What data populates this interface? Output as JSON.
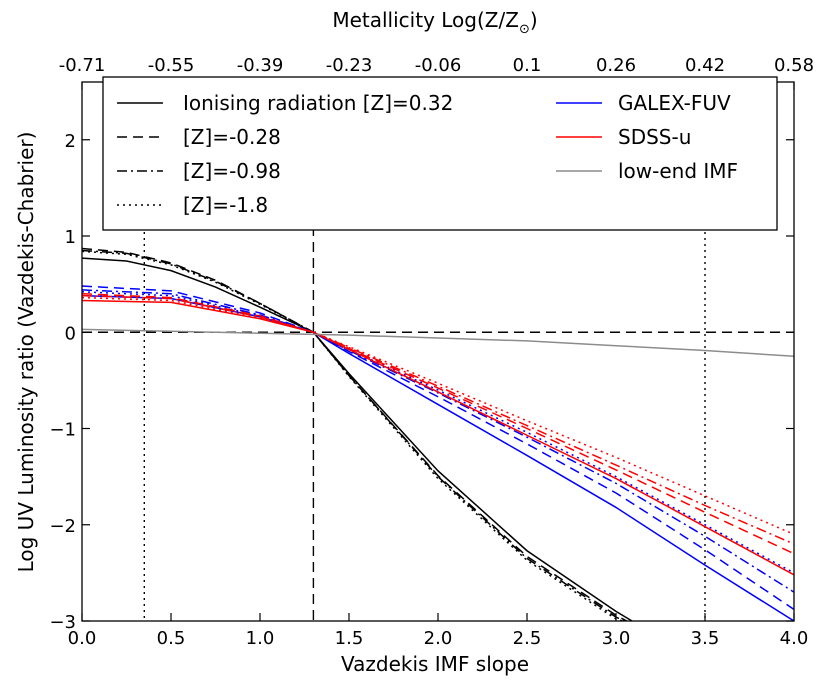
{
  "chart_data": {
    "type": "line",
    "xlabel": "Vazdekis IMF slope",
    "ylabel": "Log UV Luminosity ratio (Vazdekis-Chabrier)",
    "top_xlabel_text": "Metallicity Log(Z/Z",
    "top_xlabel_sub": "⊙",
    "top_xlabel_close": ")",
    "xlim": [
      0.0,
      4.0
    ],
    "ylim": [
      -3.0,
      2.6
    ],
    "x_ticks": [
      0.0,
      0.5,
      1.0,
      1.5,
      2.0,
      2.5,
      3.0,
      3.5,
      4.0
    ],
    "x_tick_labels": [
      "0.0",
      "0.5",
      "1.0",
      "1.5",
      "2.0",
      "2.5",
      "3.0",
      "3.5",
      "4.0"
    ],
    "y_ticks": [
      -3,
      -2,
      -1,
      0,
      1,
      2
    ],
    "y_tick_labels": [
      "−3",
      "−2",
      "−1",
      "0",
      "1",
      "2"
    ],
    "top_ticks": [
      0.0,
      0.5,
      1.0,
      1.5,
      2.0,
      2.5,
      3.0,
      3.5,
      4.0
    ],
    "top_tick_labels": [
      "-0.71",
      "-0.55",
      "-0.39",
      "-0.23",
      "-0.06",
      "0.1",
      "0.26",
      "0.42",
      "0.58"
    ],
    "reference_lines": {
      "horizontal_dashed_y": 0.0,
      "vertical_dashed_x": 1.3,
      "vertical_dotted_x": [
        0.35,
        3.5
      ]
    },
    "legend": {
      "placement": "top",
      "left_column": [
        {
          "label": "Ionising radiation [Z]=0.32",
          "style": "solid"
        },
        {
          "label": "[Z]=-0.28",
          "style": "dashed"
        },
        {
          "label": "[Z]=-0.98",
          "style": "dashdot"
        },
        {
          "label": "[Z]=-1.8",
          "style": "dotted"
        }
      ],
      "right_column": [
        {
          "label": "GALEX-FUV",
          "color": "#0000ff"
        },
        {
          "label": "SDSS-u",
          "color": "#ff0000"
        },
        {
          "label": "low-end IMF",
          "color": "#8c8c8c"
        }
      ]
    },
    "colors": {
      "ionising": "#000000",
      "galex": "#0000ff",
      "sdss": "#ff0000",
      "lowend": "#8c8c8c"
    },
    "series": [
      {
        "name": "Ionising radiation [Z]=0.32",
        "color": "#000000",
        "style": "solid",
        "x": [
          0.0,
          0.25,
          0.5,
          0.75,
          1.0,
          1.3,
          1.5,
          2.0,
          2.5,
          3.0,
          3.09
        ],
        "y": [
          0.77,
          0.74,
          0.64,
          0.47,
          0.26,
          0.0,
          -0.43,
          -1.44,
          -2.27,
          -2.9,
          -3.0
        ]
      },
      {
        "name": "[Z]=-0.28",
        "color": "#000000",
        "style": "dashed",
        "x": [
          0.0,
          0.25,
          0.5,
          0.75,
          1.0,
          1.3,
          1.5,
          2.0,
          2.5,
          3.0,
          3.06
        ],
        "y": [
          0.87,
          0.83,
          0.72,
          0.54,
          0.3,
          0.0,
          -0.45,
          -1.49,
          -2.33,
          -2.94,
          -3.0
        ]
      },
      {
        "name": "[Z]=-0.98",
        "color": "#000000",
        "style": "dashdot",
        "x": [
          0.0,
          0.25,
          0.5,
          0.75,
          1.0,
          1.3,
          1.5,
          2.0,
          2.5,
          3.0,
          3.05
        ],
        "y": [
          0.85,
          0.82,
          0.71,
          0.53,
          0.3,
          0.0,
          -0.45,
          -1.5,
          -2.35,
          -2.96,
          -3.0
        ]
      },
      {
        "name": "[Z]=-1.8",
        "color": "#000000",
        "style": "dotted",
        "x": [
          0.0,
          0.25,
          0.5,
          0.75,
          1.0,
          1.3,
          1.5,
          2.0,
          2.5,
          3.0,
          3.04
        ],
        "y": [
          0.84,
          0.81,
          0.7,
          0.52,
          0.29,
          0.0,
          -0.46,
          -1.52,
          -2.37,
          -2.98,
          -3.0
        ]
      },
      {
        "name": "GALEX-FUV [Z]=0.32",
        "color": "#0000ff",
        "style": "solid",
        "x": [
          0.0,
          0.5,
          1.0,
          1.3,
          1.5,
          2.0,
          2.5,
          3.0,
          3.5,
          4.0
        ],
        "y": [
          0.38,
          0.35,
          0.16,
          0.0,
          -0.22,
          -0.75,
          -1.28,
          -1.82,
          -2.42,
          -3.0
        ]
      },
      {
        "name": "GALEX-FUV [Z]=-0.28",
        "color": "#0000ff",
        "style": "dashed",
        "x": [
          0.0,
          0.5,
          1.0,
          1.3,
          1.5,
          2.0,
          2.5,
          3.0,
          3.5,
          4.0
        ],
        "y": [
          0.48,
          0.43,
          0.2,
          0.0,
          -0.2,
          -0.67,
          -1.16,
          -1.67,
          -2.26,
          -2.88
        ]
      },
      {
        "name": "GALEX-FUV [Z]=-0.98",
        "color": "#0000ff",
        "style": "dashdot",
        "x": [
          0.0,
          0.5,
          1.0,
          1.3,
          1.5,
          2.0,
          2.5,
          3.0,
          3.5,
          4.0
        ],
        "y": [
          0.44,
          0.4,
          0.18,
          0.0,
          -0.19,
          -0.63,
          -1.09,
          -1.57,
          -2.12,
          -2.7
        ]
      },
      {
        "name": "GALEX-FUV [Z]=-1.8",
        "color": "#0000ff",
        "style": "dotted",
        "x": [
          0.0,
          0.5,
          1.0,
          1.3,
          1.5,
          2.0,
          2.5,
          3.0,
          3.5,
          4.0
        ],
        "y": [
          0.42,
          0.38,
          0.17,
          0.0,
          -0.18,
          -0.6,
          -1.04,
          -1.5,
          -2.0,
          -2.5
        ]
      },
      {
        "name": "SDSS-u [Z]=0.32",
        "color": "#ff0000",
        "style": "solid",
        "x": [
          0.0,
          0.5,
          1.0,
          1.3,
          1.5,
          2.0,
          2.5,
          3.0,
          3.5,
          4.0
        ],
        "y": [
          0.33,
          0.31,
          0.14,
          0.0,
          -0.18,
          -0.62,
          -1.07,
          -1.52,
          -2.02,
          -2.52
        ]
      },
      {
        "name": "SDSS-u [Z]=-0.28",
        "color": "#ff0000",
        "style": "dashed",
        "x": [
          0.0,
          0.5,
          1.0,
          1.3,
          1.5,
          2.0,
          2.5,
          3.0,
          3.5,
          4.0
        ],
        "y": [
          0.4,
          0.36,
          0.17,
          0.0,
          -0.17,
          -0.58,
          -1.0,
          -1.43,
          -1.87,
          -2.3
        ]
      },
      {
        "name": "SDSS-u [Z]=-0.98",
        "color": "#ff0000",
        "style": "dashdot",
        "x": [
          0.0,
          0.5,
          1.0,
          1.3,
          1.5,
          2.0,
          2.5,
          3.0,
          3.5,
          4.0
        ],
        "y": [
          0.38,
          0.35,
          0.16,
          0.0,
          -0.16,
          -0.56,
          -0.97,
          -1.38,
          -1.8,
          -2.2
        ]
      },
      {
        "name": "SDSS-u [Z]=-1.8",
        "color": "#ff0000",
        "style": "dotted",
        "x": [
          0.0,
          0.5,
          1.0,
          1.3,
          1.5,
          2.0,
          2.5,
          3.0,
          3.5,
          4.0
        ],
        "y": [
          0.36,
          0.33,
          0.15,
          0.0,
          -0.15,
          -0.53,
          -0.92,
          -1.3,
          -1.7,
          -2.1
        ]
      },
      {
        "name": "low-end IMF",
        "color": "#8c8c8c",
        "style": "solid",
        "x": [
          0.0,
          0.5,
          1.0,
          1.5,
          2.0,
          2.5,
          3.0,
          3.5,
          4.0
        ],
        "y": [
          0.03,
          0.01,
          -0.01,
          -0.03,
          -0.06,
          -0.09,
          -0.14,
          -0.19,
          -0.25
        ]
      }
    ]
  }
}
